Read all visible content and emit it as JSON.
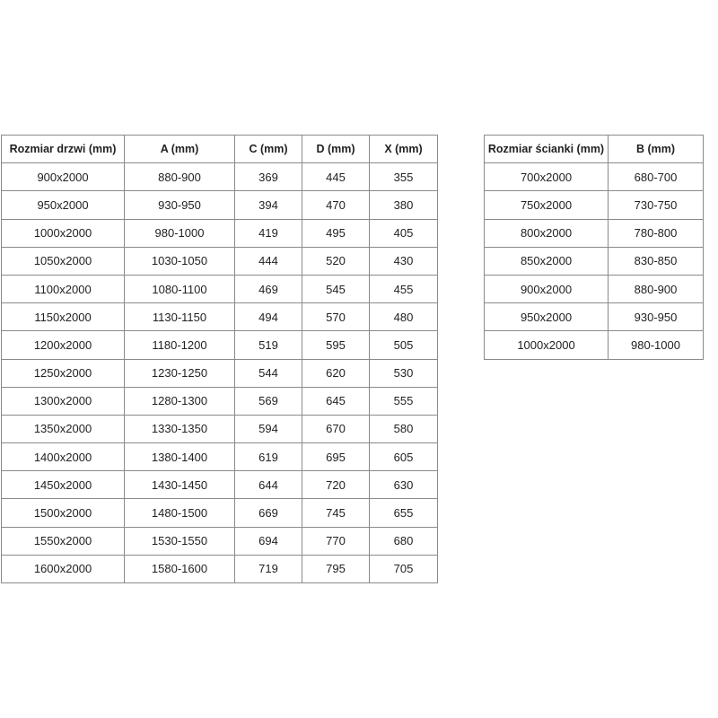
{
  "doors_table": {
    "headers": [
      "Rozmiar drzwi (mm)",
      "A (mm)",
      "C (mm)",
      "D (mm)",
      "X (mm)"
    ],
    "rows": [
      [
        "900x2000",
        "880-900",
        "369",
        "445",
        "355"
      ],
      [
        "950x2000",
        "930-950",
        "394",
        "470",
        "380"
      ],
      [
        "1000x2000",
        "980-1000",
        "419",
        "495",
        "405"
      ],
      [
        "1050x2000",
        "1030-1050",
        "444",
        "520",
        "430"
      ],
      [
        "1100x2000",
        "1080-1100",
        "469",
        "545",
        "455"
      ],
      [
        "1150x2000",
        "1130-1150",
        "494",
        "570",
        "480"
      ],
      [
        "1200x2000",
        "1180-1200",
        "519",
        "595",
        "505"
      ],
      [
        "1250x2000",
        "1230-1250",
        "544",
        "620",
        "530"
      ],
      [
        "1300x2000",
        "1280-1300",
        "569",
        "645",
        "555"
      ],
      [
        "1350x2000",
        "1330-1350",
        "594",
        "670",
        "580"
      ],
      [
        "1400x2000",
        "1380-1400",
        "619",
        "695",
        "605"
      ],
      [
        "1450x2000",
        "1430-1450",
        "644",
        "720",
        "630"
      ],
      [
        "1500x2000",
        "1480-1500",
        "669",
        "745",
        "655"
      ],
      [
        "1550x2000",
        "1530-1550",
        "694",
        "770",
        "680"
      ],
      [
        "1600x2000",
        "1580-1600",
        "719",
        "795",
        "705"
      ]
    ]
  },
  "wall_table": {
    "headers": [
      "Rozmiar ścianki (mm)",
      "B (mm)"
    ],
    "rows": [
      [
        "700x2000",
        "680-700"
      ],
      [
        "750x2000",
        "730-750"
      ],
      [
        "800x2000",
        "780-800"
      ],
      [
        "850x2000",
        "830-850"
      ],
      [
        "900x2000",
        "880-900"
      ],
      [
        "950x2000",
        "930-950"
      ],
      [
        "1000x2000",
        "980-1000"
      ]
    ]
  }
}
